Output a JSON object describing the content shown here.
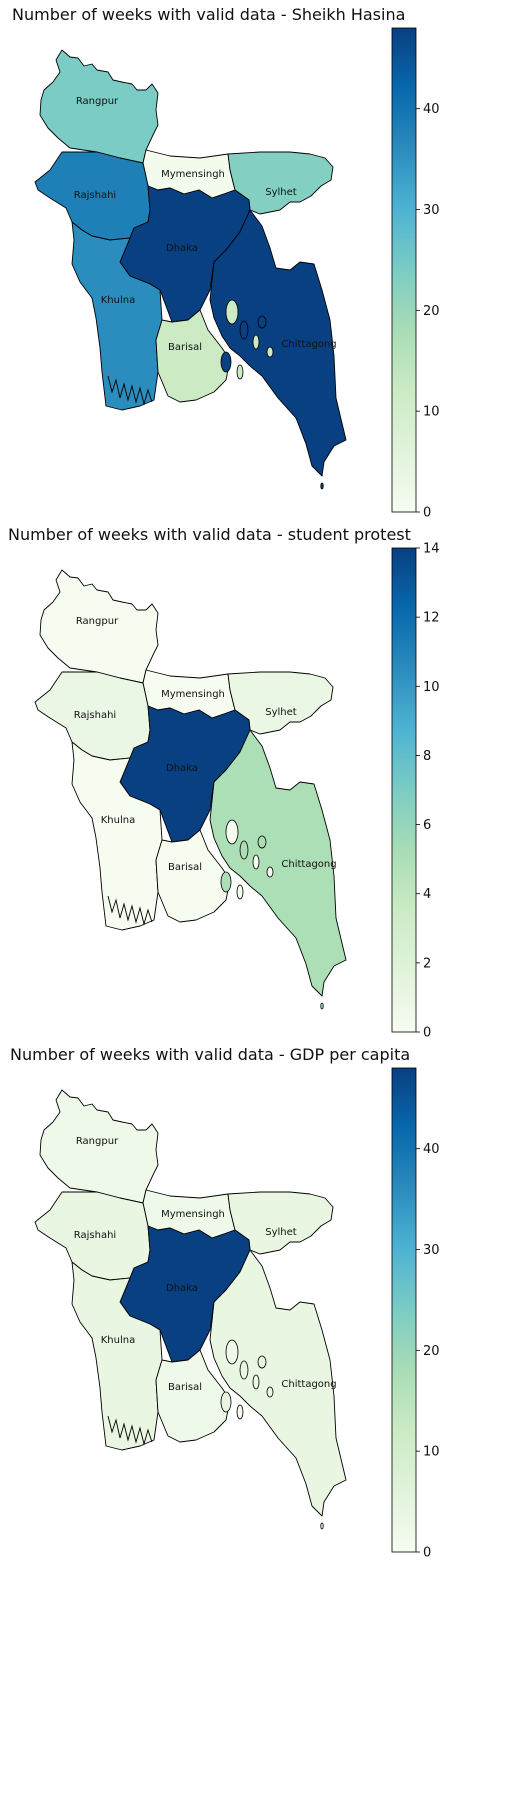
{
  "chart_data": [
    {
      "type": "choropleth",
      "title": "Number of weeks with valid data - Sheikh Hasina",
      "regions": [
        "Rangpur",
        "Mymensingh",
        "Sylhet",
        "Rajshahi",
        "Dhaka",
        "Khulna",
        "Barisal",
        "Chittagong"
      ],
      "values": [
        24,
        1,
        23,
        38,
        48,
        36,
        12,
        48
      ],
      "colorbar": {
        "ticks": [
          0,
          10,
          20,
          30,
          40
        ],
        "min": 0,
        "max": 48
      },
      "colormap": [
        "#f7fcf0",
        "#e0f3db",
        "#ccebc5",
        "#a8ddb5",
        "#7bccc4",
        "#4eb3d3",
        "#2b8cbe",
        "#0868ac",
        "#084081"
      ]
    },
    {
      "type": "choropleth",
      "title": "Number of weeks with valid data - student protest",
      "regions": [
        "Rangpur",
        "Mymensingh",
        "Sylhet",
        "Rajshahi",
        "Dhaka",
        "Khulna",
        "Barisal",
        "Chittagong"
      ],
      "values": [
        0,
        0,
        1,
        1,
        14,
        0,
        0,
        5
      ],
      "colorbar": {
        "ticks": [
          0,
          2,
          4,
          6,
          8,
          10,
          12,
          14
        ],
        "min": 0,
        "max": 14
      },
      "colormap": [
        "#f7fcf0",
        "#e0f3db",
        "#ccebc5",
        "#a8ddb5",
        "#7bccc4",
        "#4eb3d3",
        "#2b8cbe",
        "#0868ac",
        "#084081"
      ]
    },
    {
      "type": "choropleth",
      "title": "Number of weeks with valid data - GDP per capita",
      "regions": [
        "Rangpur",
        "Mymensingh",
        "Sylhet",
        "Rajshahi",
        "Dhaka",
        "Khulna",
        "Barisal",
        "Chittagong"
      ],
      "values": [
        2,
        2,
        4,
        4,
        48,
        4,
        2,
        4
      ],
      "colorbar": {
        "ticks": [
          0,
          10,
          20,
          30,
          40
        ],
        "min": 0,
        "max": 48
      },
      "colormap": [
        "#f7fcf0",
        "#e0f3db",
        "#ccebc5",
        "#a8ddb5",
        "#7bccc4",
        "#4eb3d3",
        "#2b8cbe",
        "#0868ac",
        "#084081"
      ]
    }
  ]
}
